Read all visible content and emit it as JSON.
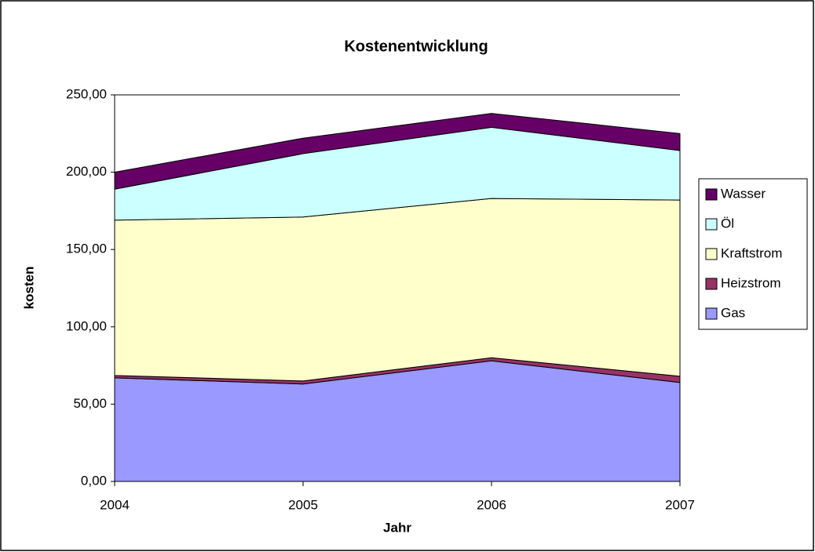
{
  "chart_data": {
    "type": "stacked_area",
    "title": "Kostenentwicklung",
    "x_label": "Jahr",
    "y_label": "kosten",
    "categories": [
      "2004",
      "2005",
      "2006",
      "2007"
    ],
    "series": [
      {
        "name": "Gas",
        "color": "#9999ff",
        "values": [
          67,
          63,
          78,
          64
        ]
      },
      {
        "name": "Heizstrom",
        "color": "#993366",
        "values": [
          1.5,
          2,
          2,
          4
        ]
      },
      {
        "name": "Kraftstrom",
        "color": "#ffffcc",
        "values": [
          100.5,
          106,
          103,
          114
        ]
      },
      {
        "name": "Öl",
        "color": "#ccffff",
        "values": [
          20,
          41,
          46,
          32
        ]
      },
      {
        "name": "Wasser",
        "color": "#660066",
        "values": [
          11,
          10,
          9,
          11
        ]
      }
    ],
    "ylim": [
      0,
      250
    ],
    "yticks": [
      {
        "value": 0,
        "label": "0,00"
      },
      {
        "value": 50,
        "label": "50,00"
      },
      {
        "value": 100,
        "label": "100,00"
      },
      {
        "value": 150,
        "label": "150,00"
      },
      {
        "value": 200,
        "label": "200,00"
      },
      {
        "value": 250,
        "label": "250,00"
      }
    ],
    "grid": true,
    "legend": "right"
  }
}
